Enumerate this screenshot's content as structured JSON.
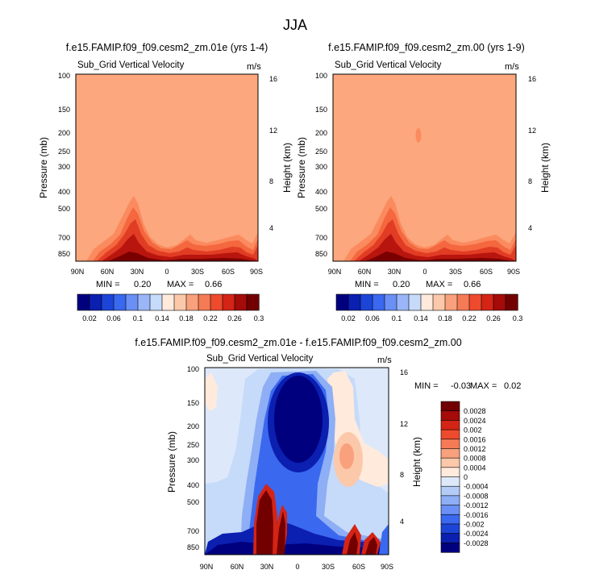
{
  "page_title": "JJA",
  "chart_data": [
    {
      "type": "heatmap",
      "title": "f.e15.FAMIP.f09_f09.cesm2_zm.01e (yrs 1-4)",
      "field_label": "Sub_Grid Vertical Velocity",
      "units": "m/s",
      "ylabel": "Pressure (mb)",
      "ylabel_right": "Height (km)",
      "x_ticks": [
        "90N",
        "60N",
        "30N",
        "0",
        "30S",
        "60S",
        "90S"
      ],
      "y_ticks": [
        "100",
        "150",
        "200",
        "250",
        "300",
        "400",
        "500",
        "700",
        "850"
      ],
      "y_right_ticks": [
        "16",
        "12",
        "8",
        "4"
      ],
      "stats": {
        "min_label": "MIN =",
        "min": "0.20",
        "max_label": "MAX =",
        "max": "0.66"
      },
      "colorbar_levels": [
        "0.02",
        "0.06",
        "0.1",
        "0.14",
        "0.18",
        "0.22",
        "0.26",
        "0.3"
      ]
    },
    {
      "type": "heatmap",
      "title": "f.e15.FAMIP.f09_f09.cesm2_zm.00 (yrs 1-9)",
      "field_label": "Sub_Grid Vertical Velocity",
      "units": "m/s",
      "ylabel": "Pressure (mb)",
      "ylabel_right": "Height (km)",
      "x_ticks": [
        "90N",
        "60N",
        "30N",
        "0",
        "30S",
        "60S",
        "90S"
      ],
      "y_ticks": [
        "100",
        "150",
        "200",
        "250",
        "300",
        "400",
        "500",
        "700",
        "850"
      ],
      "y_right_ticks": [
        "16",
        "12",
        "8",
        "4"
      ],
      "stats": {
        "min_label": "MIN =",
        "min": "0.20",
        "max_label": "MAX =",
        "max": "0.66"
      },
      "colorbar_levels": [
        "0.02",
        "0.06",
        "0.1",
        "0.14",
        "0.18",
        "0.22",
        "0.26",
        "0.3"
      ]
    },
    {
      "type": "heatmap",
      "title": "f.e15.FAMIP.f09_f09.cesm2_zm.01e - f.e15.FAMIP.f09_f09.cesm2_zm.00",
      "field_label": "Sub_Grid Vertical Velocity",
      "units": "m/s",
      "ylabel": "Pressure (mb)",
      "ylabel_right": "Height (km)",
      "x_ticks": [
        "90N",
        "60N",
        "30N",
        "0",
        "30S",
        "60S",
        "90S"
      ],
      "y_ticks": [
        "100",
        "150",
        "200",
        "250",
        "300",
        "400",
        "500",
        "700",
        "850"
      ],
      "y_right_ticks": [
        "16",
        "12",
        "8",
        "4"
      ],
      "stats": {
        "min_label": "MIN =",
        "min": "-0.03",
        "max_label": "MAX =",
        "max": "0.02"
      },
      "colorbar_levels": [
        "0.0028",
        "0.0024",
        "0.002",
        "0.0016",
        "0.0012",
        "0.0008",
        "0.0004",
        "0",
        "-0.0004",
        "-0.0008",
        "-0.0012",
        "-0.0016",
        "-0.002",
        "-0.0024",
        "-0.0028"
      ]
    }
  ],
  "colors": {
    "cb_top": [
      "#00007f",
      "#0b1fb0",
      "#1c45d8",
      "#3a68ee",
      "#6a90f5",
      "#9bb6f8",
      "#c6daf9",
      "#ffeadc",
      "#fcc8aa",
      "#f9a07c",
      "#f47b55",
      "#ee4a2d",
      "#d42416",
      "#a40b09",
      "#720000"
    ],
    "cb_diff": [
      "#720000",
      "#a40b09",
      "#d42416",
      "#ee4a2d",
      "#f47b55",
      "#f9a07c",
      "#fcc8aa",
      "#ffeadc",
      "#dde9fa",
      "#b2cbf7",
      "#8eaef5",
      "#6a90f5",
      "#3a68ee",
      "#1c45d8",
      "#0b1fb0",
      "#00007f"
    ],
    "field_orange": "#fca77d",
    "field_blue_light": "#c6daf9"
  }
}
